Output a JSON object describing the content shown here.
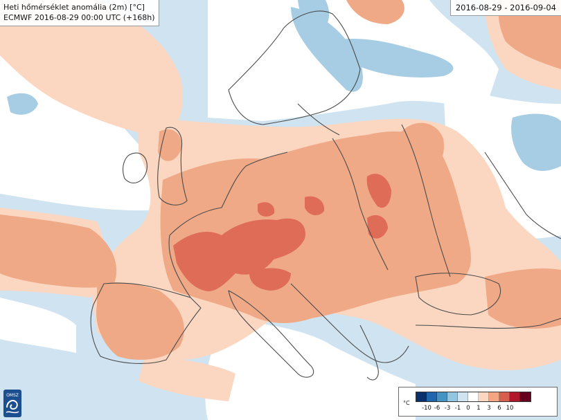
{
  "title": {
    "line1": "Heti hőmérséklet anomália (2m) [°C]",
    "line2": "ECMWF 2016-08-29 00:00 UTC (+168h)"
  },
  "date_range": "2016-08-29 - 2016-09-04",
  "logo": {
    "text": "OMSZ",
    "icon": "omsz-logo-icon"
  },
  "legend": {
    "unit": "°C",
    "tick_labels": [
      "-10",
      "-6",
      "-3",
      "-1",
      "0",
      "1",
      "3",
      "6",
      "10"
    ],
    "colors": [
      "#08306b",
      "#2166ac",
      "#4393c3",
      "#92c5de",
      "#cfe3f1",
      "#ffffff",
      "#fbd7c1",
      "#f4a582",
      "#d6604d",
      "#b2182b",
      "#67001f"
    ]
  },
  "map": {
    "colors": {
      "sea_neutral": "#cfe3f1",
      "cool_light": "#cfe3f1",
      "cool_mid": "#a6cde3",
      "white_band": "#ffffff",
      "warm_light": "#fbd7c1",
      "warm_mid": "#f0a987",
      "warm_strong": "#de6c57",
      "coast": "#4a4a4a"
    }
  }
}
